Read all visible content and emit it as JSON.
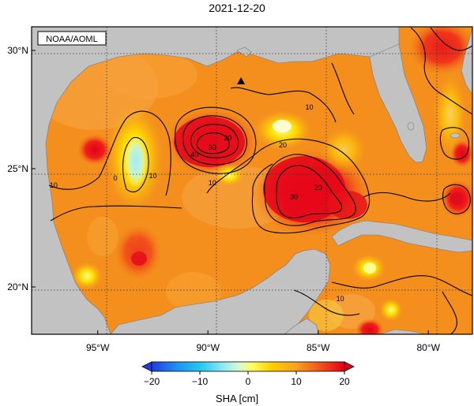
{
  "title": "2021-12-20",
  "credit": "NOAA/AOML",
  "map": {
    "lon_range": [
      -98,
      -78
    ],
    "lat_range": [
      18,
      31
    ],
    "lon_ticks": [
      {
        "value": -95,
        "label": "95°W"
      },
      {
        "value": -90,
        "label": "90°W"
      },
      {
        "value": -85,
        "label": "85°W"
      },
      {
        "value": -80,
        "label": "80°W"
      }
    ],
    "lat_ticks": [
      {
        "value": 20,
        "label": "20°N"
      },
      {
        "value": 25,
        "label": "25°N"
      },
      {
        "value": 30,
        "label": "30°N"
      }
    ],
    "grid": true,
    "marker": {
      "symbol": "triangle",
      "lon": -88.5,
      "lat": 28.7
    },
    "contour_labels": [
      {
        "text": "10",
        "lon": -97.0,
        "lat": 24.2
      },
      {
        "text": "0",
        "lon": -94.2,
        "lat": 24.5
      },
      {
        "text": "10",
        "lon": -92.5,
        "lat": 24.6
      },
      {
        "text": "40",
        "lon": -90.6,
        "lat": 25.5
      },
      {
        "text": "30",
        "lon": -89.8,
        "lat": 25.8
      },
      {
        "text": "20",
        "lon": -89.1,
        "lat": 26.2
      },
      {
        "text": "10",
        "lon": -89.8,
        "lat": 24.3
      },
      {
        "text": "10",
        "lon": -85.4,
        "lat": 27.5
      },
      {
        "text": "20",
        "lon": -86.6,
        "lat": 25.9
      },
      {
        "text": "20",
        "lon": -85.0,
        "lat": 24.1
      },
      {
        "text": "30",
        "lon": -86.1,
        "lat": 23.7
      },
      {
        "text": "10",
        "lon": -84.0,
        "lat": 19.4
      }
    ]
  },
  "colorbar": {
    "min": -20,
    "max": 20,
    "ticks": [
      "−20",
      "−10",
      "0",
      "10",
      "20"
    ],
    "label": "SHA [cm]"
  }
}
